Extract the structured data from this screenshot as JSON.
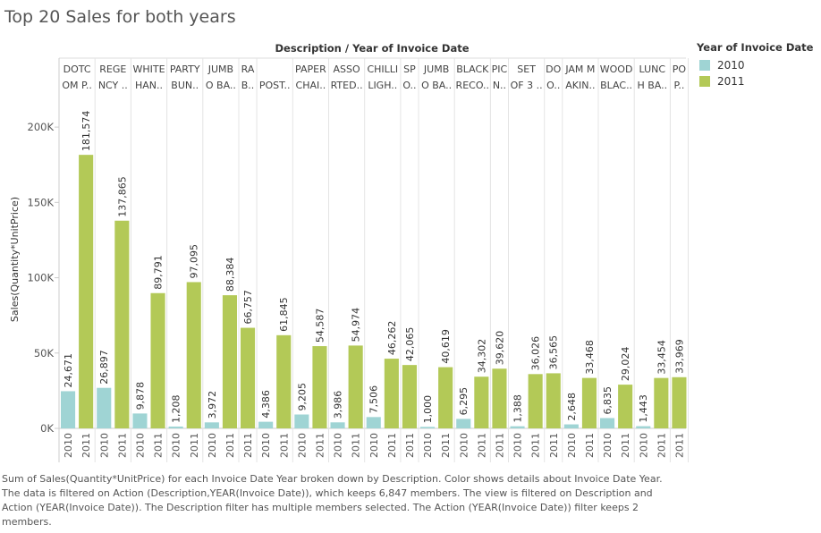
{
  "title": "Top 20 Sales for both years",
  "caption": "Sum of Sales(Quantity*UnitPrice) for each Invoice Date Year broken down by Description.  Color shows details about Invoice Date Year.  The data is filtered on Action (Description,YEAR(Invoice Date)), which keeps 6,847 members. The view is filtered on Description and Action (YEAR(Invoice Date)). The Description filter has multiple members selected. The Action (YEAR(Invoice Date)) filter keeps 2 members.",
  "legend": {
    "title": "Year of Invoice Date",
    "items": [
      {
        "label": "2010",
        "color": "#9fd4d4"
      },
      {
        "label": "2011",
        "color": "#b3c957"
      }
    ]
  },
  "chart_data": {
    "type": "bar",
    "header_title": "Description / Year of Invoice Date",
    "ylabel": "Sales(Quantity*UnitPrice)",
    "yticks": [
      "0K",
      "50K",
      "100K",
      "150K",
      "200K"
    ],
    "ylim": [
      0,
      225000
    ],
    "grid": false,
    "legend_position": "right",
    "colors": {
      "2010": "#9fd4d4",
      "2011": "#b3c957"
    },
    "groups": [
      {
        "label": [
          "DOTC",
          "OM P.."
        ],
        "bars": [
          {
            "year": "2010",
            "value": 24671,
            "label": "24,671"
          },
          {
            "year": "2011",
            "value": 181574,
            "label": "181,574"
          }
        ]
      },
      {
        "label": [
          "REGE",
          "NCY .."
        ],
        "bars": [
          {
            "year": "2010",
            "value": 26897,
            "label": "26,897"
          },
          {
            "year": "2011",
            "value": 137865,
            "label": "137,865"
          }
        ]
      },
      {
        "label": [
          "WHITE",
          "HAN.."
        ],
        "bars": [
          {
            "year": "2010",
            "value": 9878,
            "label": "9,878"
          },
          {
            "year": "2011",
            "value": 89791,
            "label": "89,791"
          }
        ]
      },
      {
        "label": [
          "PARTY",
          "BUN.."
        ],
        "bars": [
          {
            "year": "2010",
            "value": 1208,
            "label": "1,208"
          },
          {
            "year": "2011",
            "value": 97095,
            "label": "97,095"
          }
        ]
      },
      {
        "label": [
          "JUMB",
          "O BA.."
        ],
        "bars": [
          {
            "year": "2010",
            "value": 3972,
            "label": "3,972"
          },
          {
            "year": "2011",
            "value": 88384,
            "label": "88,384"
          }
        ]
      },
      {
        "label": [
          "RA",
          "B.."
        ],
        "bars": [
          {
            "year": "2011",
            "value": 66757,
            "label": "66,757"
          }
        ]
      },
      {
        "label": [
          "",
          "POST.."
        ],
        "bars": [
          {
            "year": "2010",
            "value": 4386,
            "label": "4,386"
          },
          {
            "year": "2011",
            "value": 61845,
            "label": "61,845"
          }
        ]
      },
      {
        "label": [
          "PAPER",
          "CHAI.."
        ],
        "bars": [
          {
            "year": "2010",
            "value": 9205,
            "label": "9,205"
          },
          {
            "year": "2011",
            "value": 54587,
            "label": "54,587"
          }
        ]
      },
      {
        "label": [
          "ASSO",
          "RTED.."
        ],
        "bars": [
          {
            "year": "2010",
            "value": 3986,
            "label": "3,986"
          },
          {
            "year": "2011",
            "value": 54974,
            "label": "54,974"
          }
        ]
      },
      {
        "label": [
          "CHILLI",
          "LIGH.."
        ],
        "bars": [
          {
            "year": "2010",
            "value": 7506,
            "label": "7,506"
          },
          {
            "year": "2011",
            "value": 46262,
            "label": "46,262"
          }
        ]
      },
      {
        "label": [
          "SP",
          "O.."
        ],
        "bars": [
          {
            "year": "2011",
            "value": 42065,
            "label": "42,065"
          }
        ]
      },
      {
        "label": [
          "JUMB",
          "O BA.."
        ],
        "bars": [
          {
            "year": "2010",
            "value": 1000,
            "label": "1,000"
          },
          {
            "year": "2011",
            "value": 40619,
            "label": "40,619"
          }
        ]
      },
      {
        "label": [
          "BLACK",
          "RECO.."
        ],
        "bars": [
          {
            "year": "2010",
            "value": 6295,
            "label": "6,295"
          },
          {
            "year": "2011",
            "value": 34302,
            "label": "34,302"
          }
        ]
      },
      {
        "label": [
          "PIC",
          "N.."
        ],
        "bars": [
          {
            "year": "2011",
            "value": 39620,
            "label": "39,620"
          }
        ]
      },
      {
        "label": [
          "SET",
          "OF 3 .."
        ],
        "bars": [
          {
            "year": "2010",
            "value": 1388,
            "label": "1,388"
          },
          {
            "year": "2011",
            "value": 36026,
            "label": "36,026"
          }
        ]
      },
      {
        "label": [
          "DO",
          "O.."
        ],
        "bars": [
          {
            "year": "2011",
            "value": 36565,
            "label": "36,565"
          }
        ]
      },
      {
        "label": [
          "JAM M",
          "AKIN.."
        ],
        "bars": [
          {
            "year": "2010",
            "value": 2648,
            "label": "2,648"
          },
          {
            "year": "2011",
            "value": 33468,
            "label": "33,468"
          }
        ]
      },
      {
        "label": [
          "WOOD",
          "BLAC.."
        ],
        "bars": [
          {
            "year": "2010",
            "value": 6835,
            "label": "6,835"
          },
          {
            "year": "2011",
            "value": 29024,
            "label": "29,024"
          }
        ]
      },
      {
        "label": [
          "LUNC",
          "H BA.."
        ],
        "bars": [
          {
            "year": "2010",
            "value": 1443,
            "label": "1,443"
          },
          {
            "year": "2011",
            "value": 33454,
            "label": "33,454"
          }
        ]
      },
      {
        "label": [
          "PO",
          "P.."
        ],
        "bars": [
          {
            "year": "2011",
            "value": 33969,
            "label": "33,969"
          }
        ]
      }
    ]
  }
}
